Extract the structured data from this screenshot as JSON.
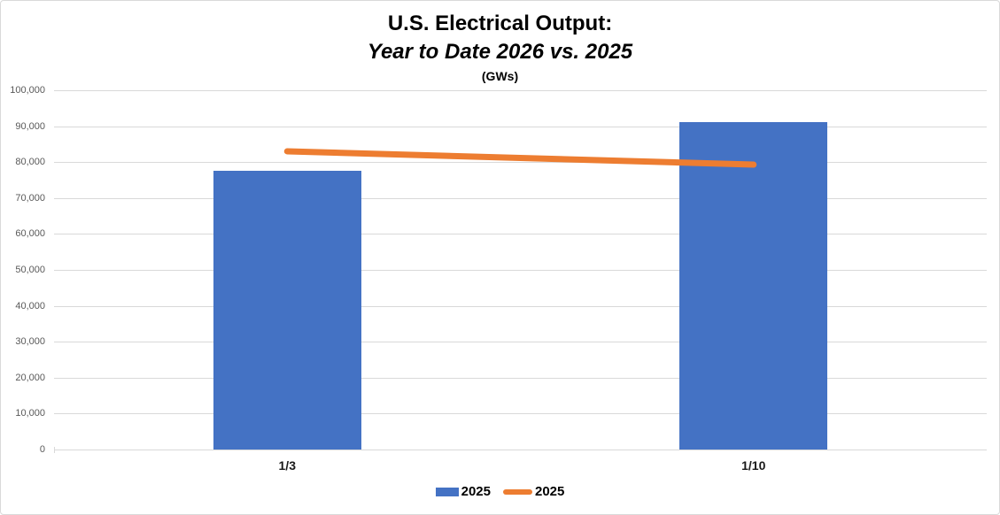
{
  "title": {
    "line1": "U.S. Electrical Output:",
    "line2": "Year to Date 2026 vs. 2025",
    "line3": "(GWs)"
  },
  "colors": {
    "bar_series": "#4472C4",
    "line_series": "#ED7D31",
    "gridline": "#D9D9D9",
    "axis_line": "#D9D9D9",
    "y_axis_text": "#595959",
    "x_axis_text": "#1A1A1A",
    "chart_border": "#D9D9D9",
    "background": "#FFFFFF"
  },
  "chart_data": {
    "type": "combo",
    "categories": [
      "1/3",
      "1/10"
    ],
    "series": [
      {
        "name": "2025",
        "type": "bar",
        "color": "#4472C4",
        "values": [
          77600,
          91100
        ]
      },
      {
        "name": "2025",
        "type": "line",
        "color": "#ED7D31",
        "values": [
          83000,
          79300
        ]
      }
    ],
    "title": "U.S. Electrical Output: Year to Date 2026 vs. 2025",
    "subtitle_units": "(GWs)",
    "xlabel": "",
    "ylabel": "",
    "ylim": [
      0,
      100000
    ],
    "ytick_step": 10000,
    "ytick_labels": [
      "0",
      "10,000",
      "20,000",
      "30,000",
      "40,000",
      "50,000",
      "60,000",
      "70,000",
      "80,000",
      "90,000",
      "100,000"
    ],
    "grid": true,
    "legend_position": "bottom"
  }
}
